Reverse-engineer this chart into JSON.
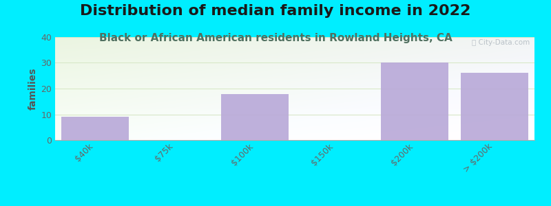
{
  "title": "Distribution of median family income in 2022",
  "subtitle": "Black or African American residents in Rowland Heights, CA",
  "categories": [
    "$40k",
    "$75k",
    "$100k",
    "$150k",
    "$200k",
    "> $200k"
  ],
  "values": [
    9,
    0,
    18,
    0,
    30,
    26
  ],
  "bar_color": "#b8a8d8",
  "background_outer": "#00eeff",
  "grid_color": "#d8e8c8",
  "ylabel": "families",
  "ylim": [
    0,
    40
  ],
  "yticks": [
    0,
    10,
    20,
    30,
    40
  ],
  "title_fontsize": 16,
  "subtitle_fontsize": 11,
  "subtitle_color": "#507060",
  "tick_label_color": "#666666",
  "tick_label_fontsize": 9,
  "ylabel_color": "#555555",
  "ylabel_fontsize": 10,
  "watermark": "ⓘ City-Data.com",
  "watermark_color": "#b0b8c0"
}
